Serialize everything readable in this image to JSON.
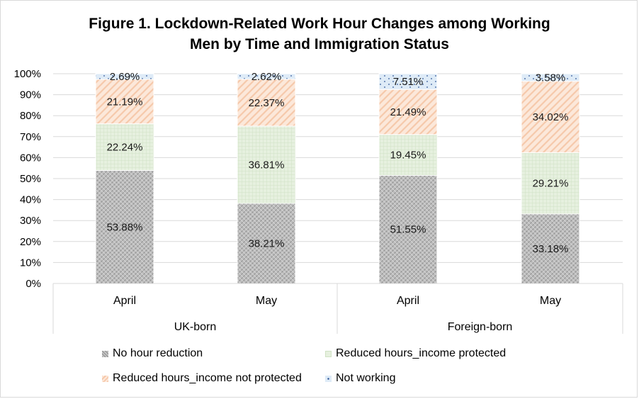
{
  "title_lines": [
    "Figure 1. Lockdown-Related Work Hour Changes among Working",
    "Men by Time and Immigration Status"
  ],
  "chart_data": {
    "type": "bar",
    "stacked": "percent",
    "y_ticks": [
      "0%",
      "10%",
      "20%",
      "30%",
      "40%",
      "50%",
      "60%",
      "70%",
      "80%",
      "90%",
      "100%"
    ],
    "ylim": [
      0,
      100
    ],
    "grid": true,
    "legend_position": "bottom",
    "groups": [
      {
        "label": "UK-born",
        "categories": [
          "April",
          "May"
        ]
      },
      {
        "label": "Foreign-born",
        "categories": [
          "April",
          "May"
        ]
      }
    ],
    "categories": [
      "April",
      "May",
      "April",
      "May"
    ],
    "series": [
      {
        "name": "No hour reduction",
        "values": [
          53.88,
          38.21,
          51.55,
          33.18
        ],
        "labels": [
          "53.88%",
          "38.21%",
          "51.55%",
          "33.18%"
        ],
        "color": "#bdbdbd",
        "pattern": "diagonal-crosshatch"
      },
      {
        "name": "Reduced hours_income protected",
        "values": [
          22.24,
          36.81,
          19.45,
          29.21
        ],
        "labels": [
          "22.24%",
          "36.81%",
          "19.45%",
          "29.21%"
        ],
        "color": "#e2efda",
        "pattern": "light-grid"
      },
      {
        "name": "Reduced hours_income not protected",
        "values": [
          21.19,
          22.37,
          21.49,
          34.02
        ],
        "labels": [
          "21.19%",
          "22.37%",
          "21.49%",
          "34.02%"
        ],
        "color": "#fbe5d6",
        "pattern": "wide-diagonal"
      },
      {
        "name": "Not working",
        "values": [
          2.69,
          2.62,
          7.51,
          3.58
        ],
        "labels": [
          "2.69%",
          "2.62%",
          "7.51%",
          "3.58%"
        ],
        "color": "#ddebf7",
        "pattern": "dots"
      }
    ]
  }
}
